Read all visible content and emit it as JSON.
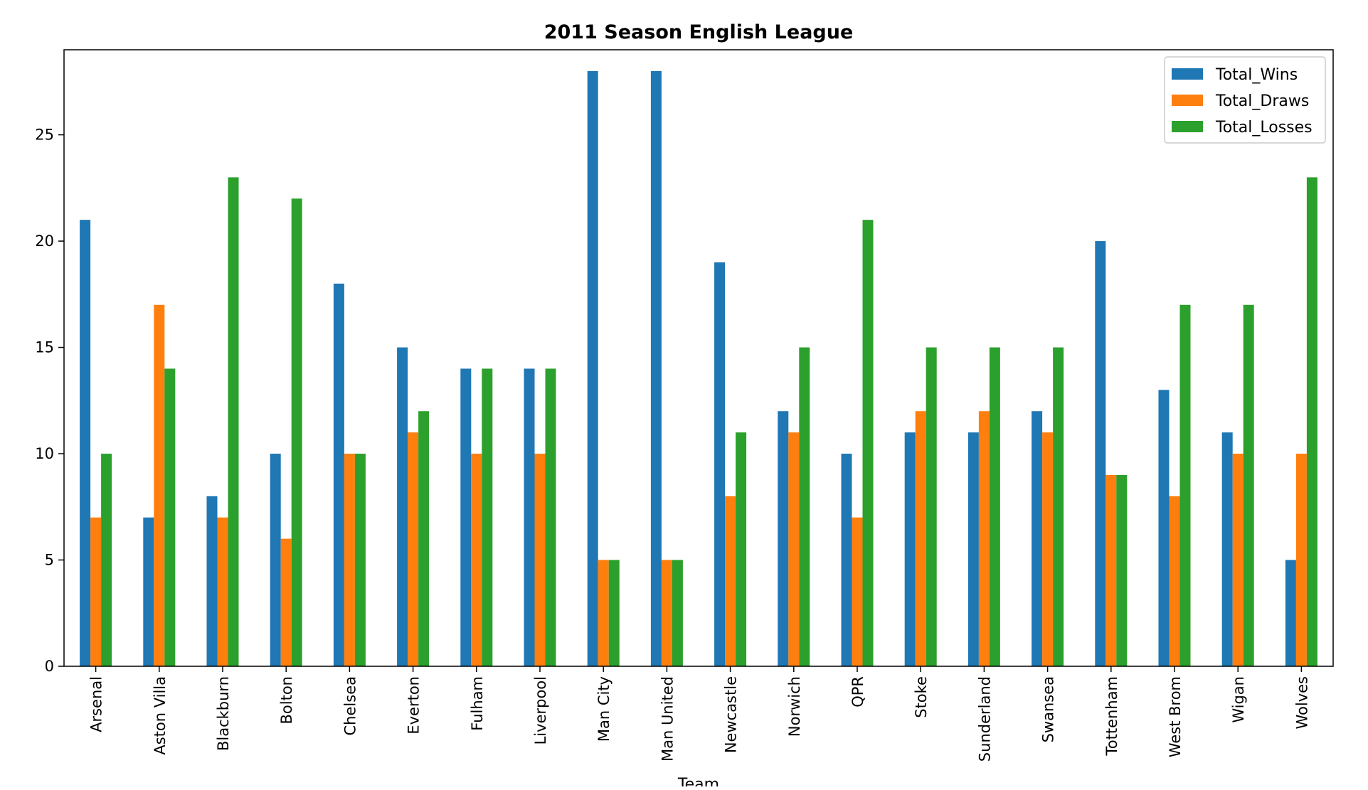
{
  "chart_data": {
    "type": "bar",
    "title": "2011 Season English League",
    "xlabel": "Team",
    "ylabel": "",
    "ylim": [
      0,
      29
    ],
    "yticks": [
      0,
      5,
      10,
      15,
      20,
      25
    ],
    "grid": false,
    "legend_position": "top-right",
    "categories": [
      "Arsenal",
      "Aston Villa",
      "Blackburn",
      "Bolton",
      "Chelsea",
      "Everton",
      "Fulham",
      "Liverpool",
      "Man City",
      "Man United",
      "Newcastle",
      "Norwich",
      "QPR",
      "Stoke",
      "Sunderland",
      "Swansea",
      "Tottenham",
      "West Brom",
      "Wigan",
      "Wolves"
    ],
    "series": [
      {
        "name": "Total_Wins",
        "color": "#1f77b4",
        "values": [
          21,
          7,
          8,
          10,
          18,
          15,
          14,
          14,
          28,
          28,
          19,
          12,
          10,
          11,
          11,
          12,
          20,
          13,
          11,
          5
        ]
      },
      {
        "name": "Total_Draws",
        "color": "#ff7f0e",
        "values": [
          7,
          17,
          7,
          6,
          10,
          11,
          10,
          10,
          5,
          5,
          8,
          11,
          7,
          12,
          12,
          11,
          9,
          8,
          10,
          10
        ]
      },
      {
        "name": "Total_Losses",
        "color": "#2ca02c",
        "values": [
          10,
          14,
          23,
          22,
          10,
          12,
          14,
          14,
          5,
          5,
          11,
          15,
          21,
          15,
          15,
          15,
          9,
          17,
          17,
          23
        ]
      }
    ]
  }
}
